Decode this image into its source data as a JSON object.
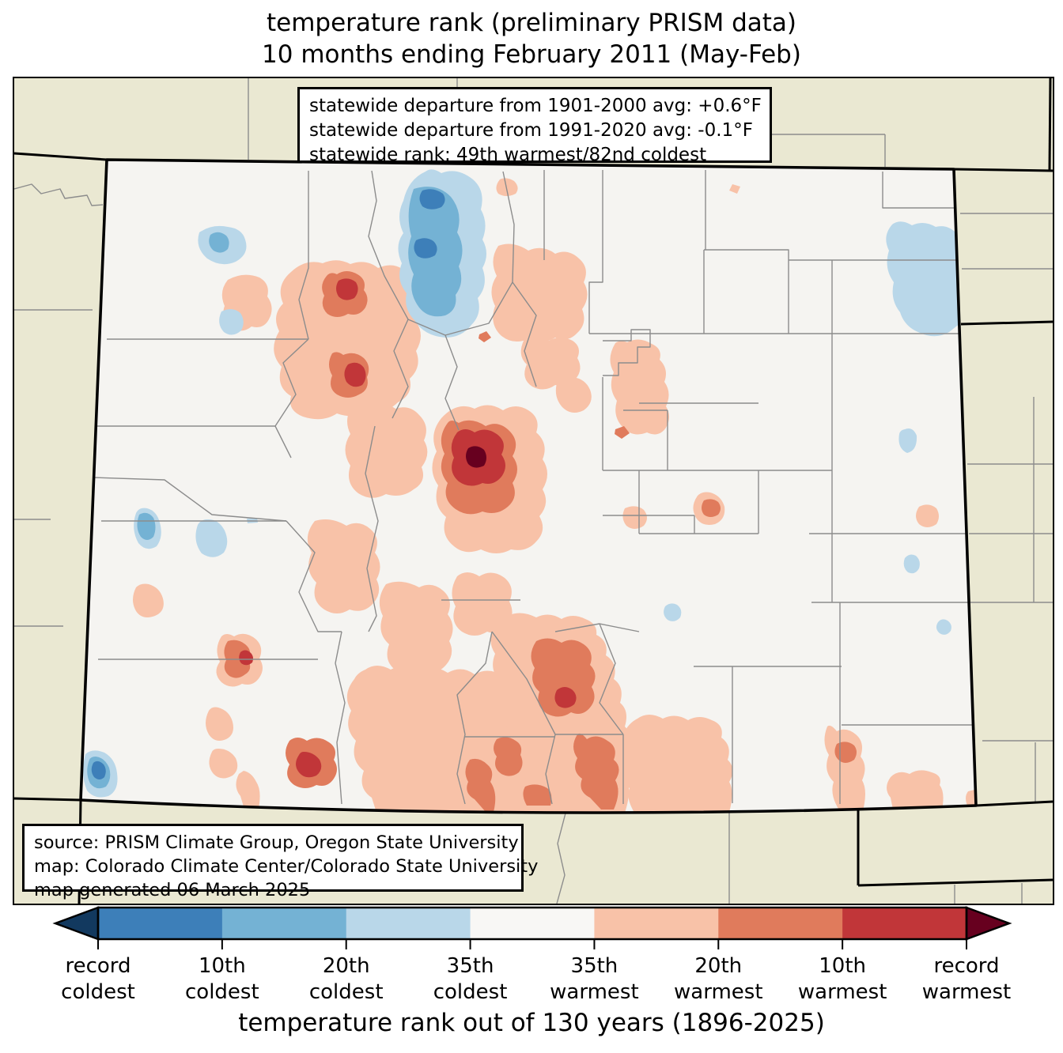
{
  "title": {
    "line1": "temperature rank (preliminary PRISM data)",
    "line2": "10 months ending February 2011 (May-Feb)"
  },
  "stats_box": {
    "line1": "statewide departure from 1901-2000 avg: +0.6°F",
    "line2": "statewide departure from 1991-2020 avg: -0.1°F",
    "line3": "statewide rank: 49th warmest/82nd coldest"
  },
  "source_box": {
    "line1": "source: PRISM Climate Group, Oregon State University",
    "line2": "map: Colorado Climate Center/Colorado State University",
    "line3": "map generated 06 March 2025"
  },
  "colors": {
    "map_outside": "#eae8d2",
    "state_fill": "#f5f4f1",
    "county_line": "#8c8c8c",
    "blue_record": "#12395f",
    "blue_dark": "#3d7fb9",
    "blue_mid": "#74b2d4",
    "blue_light": "#b9d7e9",
    "neutral": "#f8f7f5",
    "red_light": "#f8c2a8",
    "red_mid": "#e07b5c",
    "red_dark": "#c13639",
    "red_record": "#67001f"
  },
  "legend": {
    "caption": "temperature rank out of 130 years (1896-2025)",
    "arrow_left": "blue_record",
    "arrow_right": "red_record",
    "segments": [
      "blue_dark",
      "blue_mid",
      "blue_light",
      "neutral",
      "red_light",
      "red_mid",
      "red_dark"
    ],
    "tick_labels": [
      {
        "line1": "record",
        "line2": "coldest"
      },
      {
        "line1": "10th",
        "line2": "coldest"
      },
      {
        "line1": "20th",
        "line2": "coldest"
      },
      {
        "line1": "35th",
        "line2": "coldest"
      },
      {
        "line1": "35th",
        "line2": "warmest"
      },
      {
        "line1": "20th",
        "line2": "warmest"
      },
      {
        "line1": "10th",
        "line2": "warmest"
      },
      {
        "line1": "record",
        "line2": "warmest"
      }
    ]
  },
  "map": {
    "region": "Colorado",
    "data_type": "temperature rank",
    "period": "10 months ending February 2011 (May-Feb)",
    "rank_years": "130 years (1896-2025)",
    "statewide_departure_1901_2000_F": "+0.6",
    "statewide_departure_1991_2020_F": "-0.1",
    "statewide_rank": "49th warmest/82nd coldest"
  }
}
